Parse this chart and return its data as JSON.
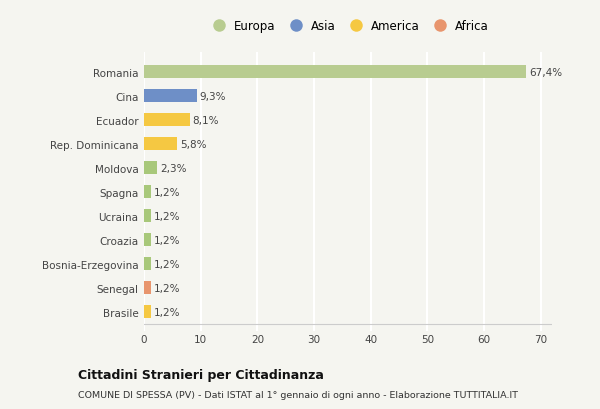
{
  "categories": [
    "Brasile",
    "Senegal",
    "Bosnia-Erzegovina",
    "Croazia",
    "Ucraina",
    "Spagna",
    "Moldova",
    "Rep. Dominicana",
    "Ecuador",
    "Cina",
    "Romania"
  ],
  "values": [
    1.2,
    1.2,
    1.2,
    1.2,
    1.2,
    1.2,
    2.3,
    5.8,
    8.1,
    9.3,
    67.4
  ],
  "labels": [
    "1,2%",
    "1,2%",
    "1,2%",
    "1,2%",
    "1,2%",
    "1,2%",
    "2,3%",
    "5,8%",
    "8,1%",
    "9,3%",
    "67,4%"
  ],
  "colors": [
    "#f5c842",
    "#e8956d",
    "#a8c87a",
    "#a8c87a",
    "#a8c87a",
    "#a8c87a",
    "#a8c87a",
    "#f5c842",
    "#f5c842",
    "#6e8fc7",
    "#b8cc90"
  ],
  "legend": [
    {
      "label": "Europa",
      "color": "#b8cc90"
    },
    {
      "label": "Asia",
      "color": "#6e8fc7"
    },
    {
      "label": "America",
      "color": "#f5c842"
    },
    {
      "label": "Africa",
      "color": "#e8956d"
    }
  ],
  "xlim": [
    0,
    72
  ],
  "xticks": [
    0,
    10,
    20,
    30,
    40,
    50,
    60,
    70
  ],
  "title_bold": "Cittadini Stranieri per Cittadinanza",
  "title_sub": "COMUNE DI SPESSA (PV) - Dati ISTAT al 1° gennaio di ogni anno - Elaborazione TUTTITALIA.IT",
  "bg_color": "#f5f5f0",
  "grid_color": "#ffffff",
  "bar_height": 0.55
}
